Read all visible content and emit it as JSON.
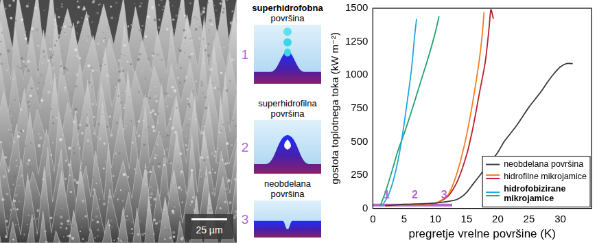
{
  "chart_data": {
    "type": "line",
    "x_label": "pregretje vrelne površine (K)",
    "y_label": "gostota toplotnega toka (kW m⁻²)",
    "xlim": [
      0,
      35
    ],
    "xticks": [
      0,
      5,
      10,
      15,
      20,
      25,
      30
    ],
    "ylim": [
      0,
      1500
    ],
    "yticks": [
      0,
      250,
      500,
      750,
      1000,
      1250,
      1500
    ],
    "grid": false,
    "legend": "lower right",
    "series": [
      {
        "name": "neobdelana površina",
        "color": "#3a3a3a",
        "x": [
          2,
          5,
          10,
          13,
          14,
          15,
          16,
          17,
          18,
          19,
          20,
          21,
          22,
          23,
          24,
          25,
          26,
          27,
          28,
          29,
          30,
          31,
          32
        ],
        "values": [
          20,
          30,
          40,
          60,
          80,
          120,
          180,
          240,
          300,
          360,
          420,
          500,
          560,
          620,
          690,
          760,
          820,
          880,
          950,
          1010,
          1060,
          1085,
          1085
        ]
      },
      {
        "name": "hidrofilne mikrojamice",
        "color": "#f47c20",
        "x": [
          2,
          10,
          12,
          13,
          14,
          15,
          16,
          17,
          17.5,
          17.8
        ],
        "values": [
          20,
          40,
          100,
          200,
          350,
          550,
          800,
          1100,
          1300,
          1470
        ]
      },
      {
        "name": "hidrofilne mikrojamice",
        "color": "#b81f2d",
        "x": [
          2,
          10,
          12,
          13.5,
          15,
          16,
          17,
          18,
          18.6,
          18.9,
          19.3
        ],
        "values": [
          20,
          40,
          90,
          200,
          400,
          600,
          850,
          1100,
          1350,
          1490,
          1420
        ]
      },
      {
        "name": "hidrofobizirane mikrojamice",
        "color": "#1ea7e1",
        "x": [
          1.5,
          2.5,
          3.5,
          4.5,
          5.5,
          6.2,
          6.7,
          7
        ],
        "values": [
          20,
          100,
          250,
          480,
          800,
          1050,
          1300,
          1420
        ]
      },
      {
        "name": "hidrofobizirane mikrojamice",
        "color": "#21a366",
        "x": [
          1.2,
          2,
          3,
          4,
          5,
          6,
          7,
          8,
          9,
          10,
          10.6
        ],
        "values": [
          20,
          120,
          270,
          430,
          560,
          700,
          850,
          1000,
          1150,
          1320,
          1440
        ]
      }
    ],
    "annotations": {
      "line": {
        "x": [
          0,
          12.7
        ],
        "values": [
          25,
          25
        ],
        "color": "#b664d2"
      },
      "labels": [
        {
          "text": "1",
          "x": 2.2,
          "y": 75
        },
        {
          "text": "2",
          "x": 6.7,
          "y": 75
        },
        {
          "text": "3",
          "x": 11.4,
          "y": 75
        }
      ]
    }
  },
  "image": {
    "scale_bar": "25 µm"
  },
  "schematics": [
    {
      "number": "1",
      "title": "superhidrofobna površina"
    },
    {
      "number": "2",
      "title": "superhidrofilna površina"
    },
    {
      "number": "3",
      "title": "neobdelana površina"
    }
  ]
}
